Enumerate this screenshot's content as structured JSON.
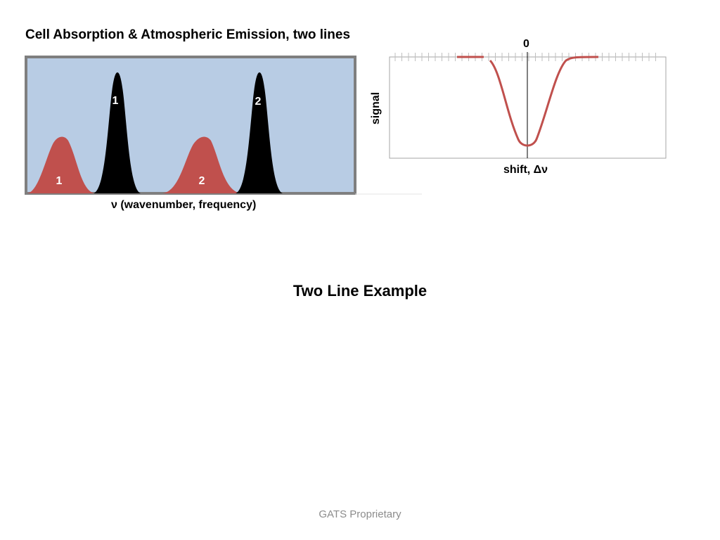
{
  "slide": {
    "left_title": "Cell Absorption & Atmospheric Emission, two lines",
    "left_axis_label": "ν (wavenumber, frequency)",
    "center_title": "Two Line Example",
    "footer": "GATS Proprietary"
  },
  "left_diagram": {
    "background_color": "#b8cce4",
    "border_color": "#7f7f7f",
    "absorption_color": "#c0504d",
    "emission_color": "#000000",
    "absorption_labels": [
      "1",
      "2"
    ],
    "emission_labels": [
      "1",
      "2"
    ]
  },
  "right_diagram": {
    "zero_label": "0",
    "y_label": "signal",
    "x_label": "shift, Δν",
    "curve_color": "#c0504d"
  }
}
